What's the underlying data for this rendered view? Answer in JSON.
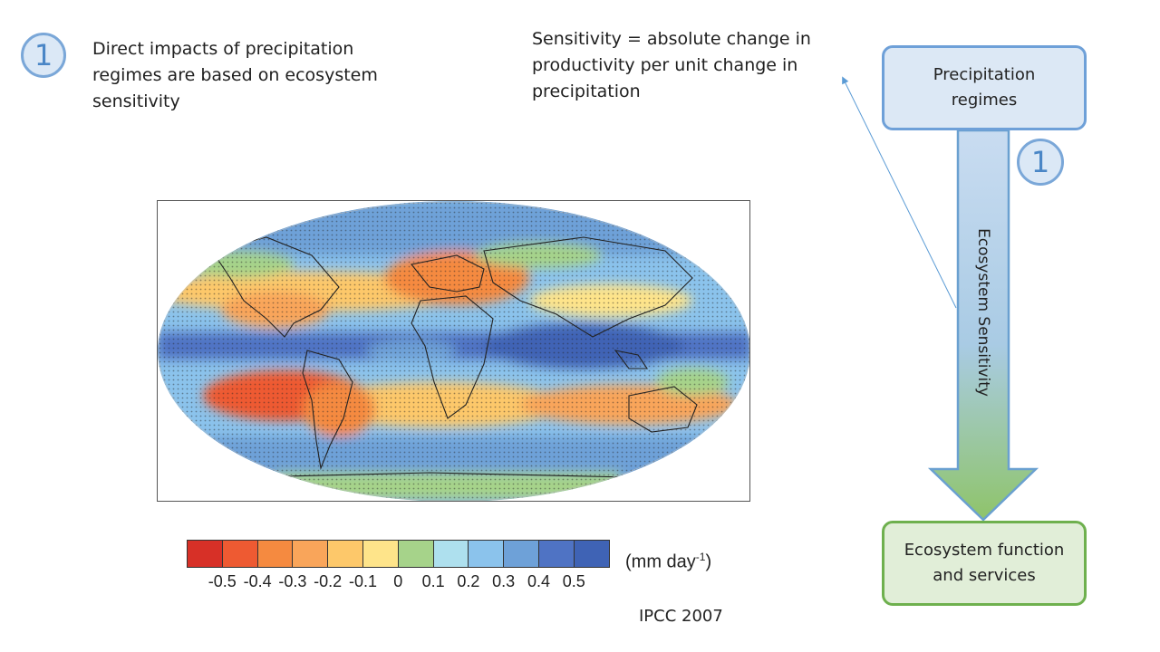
{
  "left_marker": {
    "number": "1"
  },
  "impact_text": "Direct impacts of precipitation regimes are based on ecosystem sensitivity",
  "sensitivity_text": "Sensitivity = absolute change in productivity per unit change in precipitation",
  "flow": {
    "top_box": "Precipitation regimes",
    "arrow_label": "Ecosystem Sensitivity",
    "arrow_marker": "1",
    "bottom_box": "Ecosystem function and services"
  },
  "map": {
    "colorbar_colors": [
      "#d73027",
      "#ee5a32",
      "#f58a40",
      "#f9a55a",
      "#fdc86a",
      "#fee48a",
      "#a6d38a",
      "#aee0ee",
      "#8bc3ec",
      "#6ea1d8",
      "#4f73c4",
      "#3f63b5"
    ],
    "colorbar_labels": [
      "-0.5",
      "-0.4",
      "-0.3",
      "-0.2",
      "-0.1",
      "0",
      "0.1",
      "0.2",
      "0.3",
      "0.4",
      "0.5"
    ],
    "units_base": "(mm day",
    "units_exp": "-1",
    "units_close": ")",
    "source": "IPCC 2007"
  },
  "colors": {
    "accent_blue": "#6ea0d8",
    "accent_green": "#6eb04e",
    "connector_line": "#5b9bd5"
  }
}
